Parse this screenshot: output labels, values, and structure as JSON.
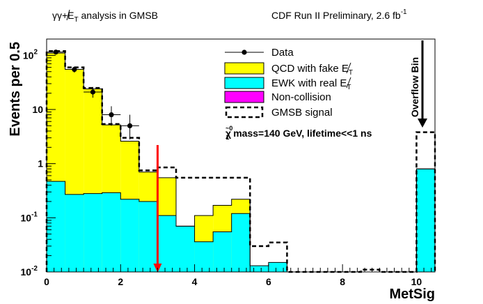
{
  "header": {
    "analysis_prefix": "γγ+E",
    "analysis_sub": "T",
    "analysis_suffix": " analysis in GMSB",
    "experiment": "CDF Run II Preliminary, 2.6 fb",
    "experiment_sup": "-1"
  },
  "chart_data": {
    "type": "bar",
    "title": "",
    "xlabel": "MetSig",
    "ylabel": "Events per 0.5",
    "xlim": [
      0,
      10.5
    ],
    "ylim": [
      0.01,
      200
    ],
    "log_y": true,
    "grid": false,
    "bin_width": 0.5,
    "x_ticks": [
      "0",
      "2",
      "4",
      "6",
      "8",
      "10"
    ],
    "y_ticks": [
      {
        "value": 0.01,
        "base": "10",
        "exp": "-2"
      },
      {
        "value": 0.1,
        "base": "10",
        "exp": "-1"
      },
      {
        "value": 1,
        "base": "1",
        "exp": ""
      },
      {
        "value": 10,
        "base": "10",
        "exp": ""
      },
      {
        "value": 100,
        "base": "10",
        "exp": "2"
      }
    ],
    "bin_edges": [
      0,
      0.5,
      1,
      1.5,
      2,
      2.5,
      3,
      3.5,
      4,
      4.5,
      5,
      5.5,
      6,
      6.5,
      7,
      7.5,
      8,
      8.5,
      9,
      9.5,
      10,
      10.5
    ],
    "series": [
      {
        "name": "QCD with fake E_T",
        "color": "#ffff00",
        "values": [
          110,
          55,
          24,
          5.2,
          2.6,
          0.7,
          0.55,
          0.07,
          0.11,
          0.17,
          0.22,
          0,
          0,
          0,
          0,
          0,
          0,
          0,
          0,
          0,
          0.8
        ]
      },
      {
        "name": "EWK with real E_T",
        "color": "#00ffff",
        "values": [
          0.47,
          0.27,
          0.28,
          0.29,
          0.22,
          0.2,
          0.11,
          0.07,
          0.036,
          0.055,
          0.12,
          0.013,
          0.015,
          0,
          0,
          0,
          0,
          0,
          0,
          0,
          0.8
        ]
      },
      {
        "name": "GMSB signal",
        "style": "dashed",
        "values": [
          120,
          60,
          25,
          5.4,
          3.0,
          0.75,
          0.85,
          0.55,
          0.55,
          0.55,
          0.55,
          0.03,
          0.035,
          0.01,
          0.01,
          0.01,
          0.01,
          0.011,
          0.01,
          0.01,
          3.8
        ]
      }
    ],
    "data_points": [
      {
        "x": 0.25,
        "y": 115,
        "yerr": [
          10,
          10
        ]
      },
      {
        "x": 0.75,
        "y": 55,
        "yerr": [
          7,
          7
        ]
      },
      {
        "x": 1.25,
        "y": 21,
        "yerr": [
          4.5,
          5
        ]
      },
      {
        "x": 1.75,
        "y": 8,
        "yerr": [
          3,
          3.5
        ]
      },
      {
        "x": 2.25,
        "y": 5,
        "yerr": [
          2.2,
          3
        ]
      }
    ],
    "cut_line": {
      "x": 3,
      "color": "#ff0000"
    },
    "overflow_label": "Overflow Bin",
    "legend": {
      "position": "top-right",
      "entries": [
        {
          "label": "Data",
          "kind": "marker"
        },
        {
          "label_pre": "QCD with fake E",
          "label_sub": "T",
          "kind": "box",
          "color": "#ffff00"
        },
        {
          "label_pre": "EWK with real E",
          "label_sub": "T",
          "kind": "box",
          "color": "#00ffff"
        },
        {
          "label": "Non-collision",
          "kind": "box",
          "color": "#ff00ff"
        },
        {
          "label": "GMSB signal",
          "kind": "dashed"
        }
      ],
      "annotation_pre": "χ",
      "annotation_sup": "~0",
      "annotation_sub": "1",
      "annotation_rest": " mass=140 GeV, lifetime<<1 ns"
    }
  }
}
